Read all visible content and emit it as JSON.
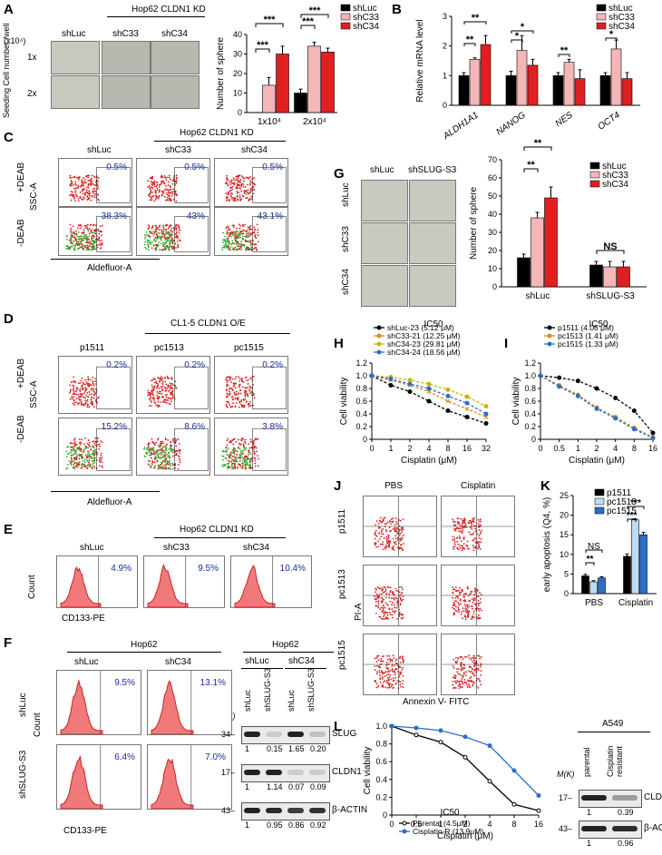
{
  "panels": {
    "A": {
      "label": "A",
      "title": "Hop62 CLDN1 KD",
      "columns": [
        "shLuc",
        "shC33",
        "shC34"
      ],
      "unit": "(x10⁴)",
      "rows": [
        "1x",
        "2x"
      ],
      "row_axis": "Seeding Cell number /well"
    },
    "C": {
      "label": "C",
      "title": "Hop62 CLDN1 KD",
      "columns": [
        "shLuc",
        "shC33",
        "shC34"
      ],
      "rows": [
        "+DEAB",
        "-DEAB"
      ],
      "yaxis": "SSC-A",
      "xaxis": "Aldefluor-A",
      "values": {
        "+DEAB": [
          "0.5%",
          "0.5%",
          "0.5%"
        ],
        "-DEAB": [
          "38.3%",
          "43%",
          "43.1%"
        ]
      }
    },
    "D": {
      "label": "D",
      "title": "CL1-5 CLDN1 O/E",
      "columns": [
        "p1511",
        "pc1513",
        "pc1515"
      ],
      "rows": [
        "+DEAB",
        "-DEAB"
      ],
      "yaxis": "SSC-A",
      "xaxis": "Aldefluor-A",
      "values": {
        "+DEAB": [
          "0.2%",
          "0.2%",
          "0.2%"
        ],
        "-DEAB": [
          "15.2%",
          "8.6%",
          "3.8%"
        ]
      }
    },
    "E": {
      "label": "E",
      "title": "Hop62 CLDN1 KD",
      "columns": [
        "shLuc",
        "shC33",
        "shC34"
      ],
      "values": [
        "4.9%",
        "9.5%",
        "10.4%"
      ],
      "yaxis": "Count",
      "xaxis": "CD133-PE"
    },
    "F": {
      "label": "F",
      "title": "Hop62",
      "columns": [
        "shLuc",
        "shC34"
      ],
      "rows": [
        "shLuc",
        "shSLUG-S3"
      ],
      "values": [
        [
          "9.5%",
          "13.1%"
        ],
        [
          "6.4%",
          "7.0%"
        ]
      ],
      "yaxis": "Count",
      "xaxis": "CD133-PE",
      "blot": {
        "title": "Hop62",
        "groups": [
          "shLuc",
          "shC34"
        ],
        "lanes": [
          "shLuc",
          "shSLUG-S3",
          "shLuc",
          "shSLUG-S3"
        ],
        "mw_label": "M(K)",
        "bands": [
          {
            "name": "SLUG",
            "mw": "34",
            "quant": [
              "1",
              "0.15",
              "1.65",
              "0.20"
            ]
          },
          {
            "name": "CLDN1",
            "mw": "17",
            "quant": [
              "1",
              "1.14",
              "0.07",
              "0.09"
            ]
          },
          {
            "name": "β-ACTIN",
            "mw": "43",
            "quant": [
              "1",
              "0.95",
              "0.86",
              "0.92"
            ]
          }
        ]
      }
    },
    "G": {
      "label": "G",
      "columns": [
        "shLuc",
        "shSLUG-S3"
      ],
      "rows": [
        "shLuc",
        "shC33",
        "shC34"
      ]
    },
    "J": {
      "label": "J",
      "columns": [
        "PBS",
        "Cisplatin"
      ],
      "rows": [
        "p1511",
        "pc1513",
        "pc1515"
      ],
      "yaxis": "PI-A",
      "xaxis": "Annexin V- FITC"
    },
    "L_blot": {
      "title": "A549",
      "lanes": [
        "parental",
        "Cisplatin resistant"
      ],
      "mw_label": "M(K)",
      "bands": [
        {
          "name": "CLDN1",
          "mw": "17",
          "quant": [
            "1",
            "0.39"
          ]
        },
        {
          "name": "β-ACTIN",
          "mw": "43",
          "quant": [
            "1",
            "0.96"
          ]
        }
      ]
    }
  },
  "chart_data": [
    {
      "id": "A",
      "type": "bar",
      "categories": [
        "1x10⁴",
        "2x10⁴"
      ],
      "series": [
        {
          "name": "shLuc",
          "color": "#000000",
          "values": [
            0,
            10
          ],
          "errors": [
            0,
            2
          ]
        },
        {
          "name": "shC33",
          "color": "#f4b6b6",
          "values": [
            14,
            34
          ],
          "errors": [
            4,
            2
          ]
        },
        {
          "name": "shC34",
          "color": "#e02020",
          "values": [
            30,
            31
          ],
          "errors": [
            4,
            2
          ]
        }
      ],
      "ylabel": "Number of sphere",
      "ylim": [
        0,
        40
      ],
      "yticks": [
        0,
        10,
        20,
        30,
        40
      ],
      "annotations": [
        "***",
        "***",
        "***",
        "***"
      ]
    },
    {
      "id": "B",
      "type": "bar",
      "categories": [
        "ALDH1A1",
        "NANOG",
        "NES",
        "OCT4"
      ],
      "series": [
        {
          "name": "shLuc",
          "color": "#000000",
          "values": [
            1.0,
            1.0,
            1.0,
            1.0
          ],
          "errors": [
            0.1,
            0.15,
            0.1,
            0.1
          ]
        },
        {
          "name": "shC33",
          "color": "#f4b6b6",
          "values": [
            1.55,
            1.85,
            1.45,
            1.9
          ],
          "errors": [
            0.05,
            0.5,
            0.1,
            0.3
          ]
        },
        {
          "name": "shC34",
          "color": "#e02020",
          "values": [
            2.05,
            1.35,
            0.9,
            0.9
          ],
          "errors": [
            0.3,
            0.2,
            0.3,
            0.2
          ]
        }
      ],
      "ylabel": "Relative mRNA level",
      "ylim": [
        0,
        3
      ],
      "yticks": [
        0,
        1,
        2,
        3
      ],
      "annotations": [
        "**",
        "**",
        "*",
        "*",
        "**",
        "*"
      ]
    },
    {
      "id": "G",
      "type": "bar",
      "categories": [
        "shLuc",
        "shSLUG-S3"
      ],
      "series": [
        {
          "name": "shLuc",
          "color": "#000000",
          "values": [
            16,
            12
          ],
          "errors": [
            2,
            2
          ]
        },
        {
          "name": "shC33",
          "color": "#f4b6b6",
          "values": [
            38,
            11
          ],
          "errors": [
            3,
            3
          ]
        },
        {
          "name": "shC34",
          "color": "#e02020",
          "values": [
            49,
            11
          ],
          "errors": [
            6,
            3
          ]
        }
      ],
      "ylabel": "Number of sphere",
      "ylim": [
        0,
        70
      ],
      "yticks": [
        0,
        10,
        20,
        30,
        40,
        50,
        60,
        70
      ],
      "annotations": [
        "**",
        "**",
        "NS"
      ]
    },
    {
      "id": "H",
      "type": "line",
      "title": "IC50",
      "x": [
        "0",
        "1",
        "2",
        "4",
        "8",
        "16",
        "32"
      ],
      "series": [
        {
          "name": "shLuc-23 (5.12 μM)",
          "color": "#000000",
          "marker": "o",
          "values": [
            1.0,
            0.85,
            0.75,
            0.6,
            0.45,
            0.35,
            0.25
          ]
        },
        {
          "name": "shC33-21 (12.25 μM)",
          "color": "#e08a1e",
          "marker": "x",
          "values": [
            1.0,
            0.93,
            0.85,
            0.75,
            0.6,
            0.48,
            0.35
          ]
        },
        {
          "name": "shC34-23 (29.81 μM)",
          "color": "#c8b400",
          "marker": "o",
          "values": [
            1.0,
            0.98,
            0.93,
            0.87,
            0.78,
            0.67,
            0.52
          ]
        },
        {
          "name": "shC34-24 (18.56 μM)",
          "color": "#2a6fc9",
          "marker": "o",
          "values": [
            1.0,
            0.95,
            0.87,
            0.8,
            0.68,
            0.57,
            0.4
          ]
        }
      ],
      "xlabel": "Cisplatin (μM)",
      "ylabel": "Cell viability",
      "ylim": [
        0,
        1.2
      ],
      "yticks": [
        "0",
        "0.2",
        "0.4",
        "0.6",
        "0.8",
        "1.0",
        "1.2"
      ]
    },
    {
      "id": "I",
      "type": "line",
      "title": "IC50",
      "x": [
        "0",
        "0.5",
        "1",
        "2",
        "4",
        "8",
        "16"
      ],
      "series": [
        {
          "name": "p1511 (4.06 μM)",
          "color": "#000000",
          "marker": "o",
          "values": [
            1.0,
            0.97,
            0.92,
            0.8,
            0.65,
            0.45,
            0.1
          ]
        },
        {
          "name": "pc1513 (1.41 μM)",
          "color": "#e08a1e",
          "marker": "o",
          "values": [
            1.0,
            0.85,
            0.7,
            0.5,
            0.35,
            0.18,
            0.03
          ]
        },
        {
          "name": "pc1515 (1.33 μM)",
          "color": "#2a6fc9",
          "marker": "o",
          "values": [
            1.0,
            0.83,
            0.68,
            0.48,
            0.33,
            0.16,
            0.02
          ]
        }
      ],
      "xlabel": "Cisplatin (μM)",
      "ylabel": "Cell viability",
      "ylim": [
        0,
        1.2
      ],
      "yticks": [
        "0",
        "0.2",
        "0.4",
        "0.6",
        "0.8",
        "1.0",
        "1.2"
      ]
    },
    {
      "id": "K",
      "type": "bar",
      "categories": [
        "PBS",
        "Cisplatin"
      ],
      "series": [
        {
          "name": "p1511",
          "color": "#000000",
          "values": [
            4.5,
            9.5
          ],
          "errors": [
            0.4,
            0.6
          ]
        },
        {
          "name": "pc1513",
          "color": "#bcdcf5",
          "values": [
            3.0,
            18.8
          ],
          "errors": [
            0.3,
            0.3
          ]
        },
        {
          "name": "pc1515",
          "color": "#2a6fc9",
          "values": [
            4.0,
            15.0
          ],
          "errors": [
            0.3,
            0.6
          ]
        }
      ],
      "ylabel": "early apoptosis (Q4, %)",
      "ylim": [
        0,
        25
      ],
      "yticks": [
        0,
        5,
        10,
        15,
        20,
        25
      ],
      "annotations": [
        "**",
        "NS",
        "***",
        "***"
      ]
    },
    {
      "id": "L",
      "type": "line",
      "title": "IC50",
      "x": [
        "0",
        "0.5",
        "1",
        "2",
        "4",
        "8",
        "16"
      ],
      "series": [
        {
          "name": "Parental (4.5μM)",
          "color": "#000000",
          "marker": "open-o",
          "values": [
            1.0,
            0.9,
            0.82,
            0.65,
            0.38,
            0.12,
            0.05
          ]
        },
        {
          "name": "Cisplatin-R (13.9μM)",
          "color": "#2a6fc9",
          "marker": "o",
          "values": [
            1.0,
            0.98,
            0.95,
            0.88,
            0.78,
            0.5,
            0.22
          ]
        }
      ],
      "xlabel": "Cisplatin (μM)",
      "ylabel": "Cell viability",
      "ylim": [
        0,
        1.0
      ],
      "yticks": [
        "0",
        "0.2",
        "0.4",
        "0.6",
        "0.8",
        "1.0"
      ]
    }
  ]
}
